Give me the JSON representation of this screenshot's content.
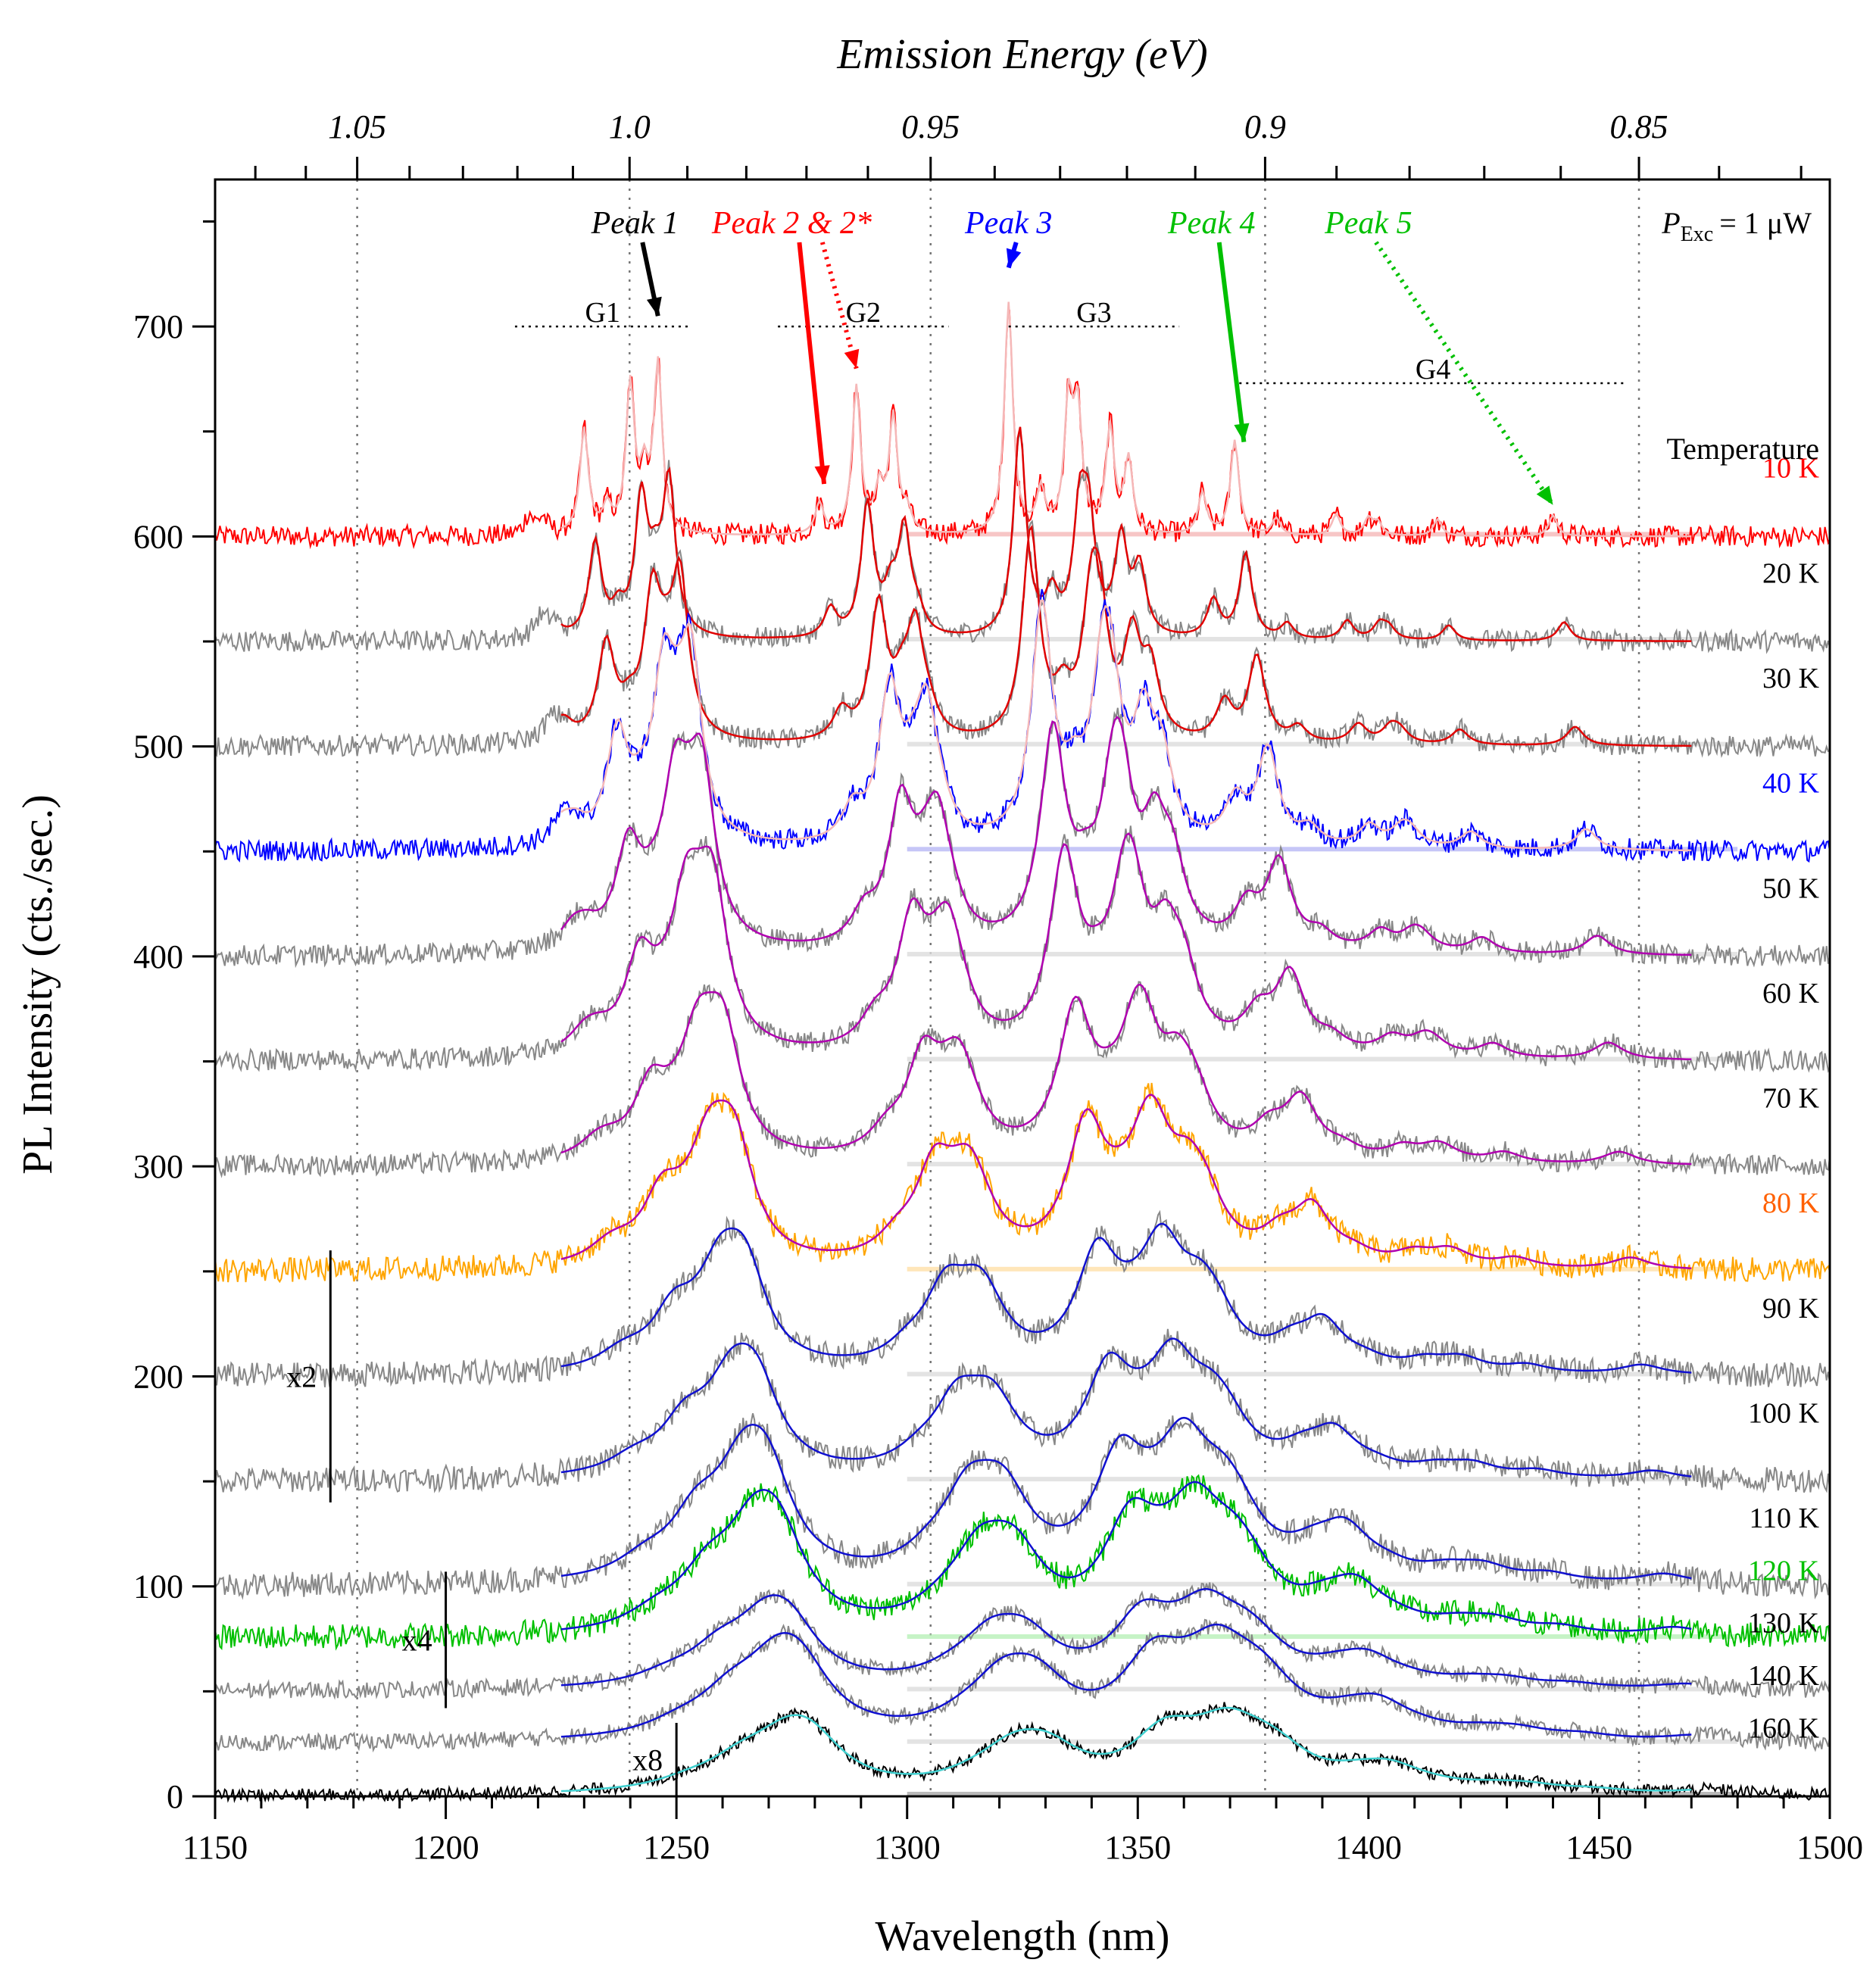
{
  "chart_data": {
    "type": "line",
    "title": "",
    "xlabel": "Wavelength (nm)",
    "ylabel": "PL Intensity (cts./sec.)",
    "x2label": "Emission Energy (eV)",
    "xlim": [
      1150,
      1500
    ],
    "ylim": [
      0,
      770
    ],
    "xticks": [
      1150,
      1200,
      1250,
      1300,
      1350,
      1400,
      1450,
      1500
    ],
    "xtick_labels": [
      "1150",
      "1200",
      "1250",
      "1300",
      "1350",
      "1400",
      "1450",
      "1500"
    ],
    "yticks": [
      0,
      100,
      200,
      300,
      400,
      500,
      600,
      700
    ],
    "ytick_labels": [
      "0",
      "100",
      "200",
      "300",
      "400",
      "500",
      "600",
      "700"
    ],
    "top_ticks": [
      {
        "energy": 1.05,
        "label": "1.05"
      },
      {
        "energy": 1.0,
        "label": "1.0"
      },
      {
        "energy": 0.95,
        "label": "0.95"
      },
      {
        "energy": 0.9,
        "label": "0.9"
      },
      {
        "energy": 0.85,
        "label": "0.85"
      }
    ],
    "grid": "vertical dotted lines at top-axis major ticks",
    "excitation_note": {
      "symbol": "P",
      "subscript": "Exc",
      "value": "= 1 μW"
    },
    "legend_title": "Temperature",
    "series": [
      {
        "name": "10 K",
        "offset": 600,
        "color": "#ff0000",
        "label_color": "#ff0000",
        "fill": "#f5b8b8",
        "fit_color": "#f5b8b8",
        "scale": 1,
        "noise": 5
      },
      {
        "name": "20 K",
        "offset": 550,
        "color": "#888888",
        "label_color": "#000000",
        "fill": "#dcdcdc",
        "fit_color": "#e00000",
        "scale": 0.9,
        "noise": 5
      },
      {
        "name": "30 K",
        "offset": 500,
        "color": "#888888",
        "label_color": "#000000",
        "fill": "#dcdcdc",
        "fit_color": "#e00000",
        "scale": 0.9,
        "noise": 5
      },
      {
        "name": "40 K",
        "offset": 450,
        "color": "#0000ff",
        "label_color": "#0000ff",
        "fill": "#b8b8f5",
        "fit_color": "#f5b8b8",
        "scale": 1.0,
        "noise": 5
      },
      {
        "name": "50 K",
        "offset": 400,
        "color": "#888888",
        "label_color": "#000000",
        "fill": "#dcdcdc",
        "fit_color": "#b000b0",
        "scale": 0.9,
        "noise": 5
      },
      {
        "name": "60 K",
        "offset": 350,
        "color": "#888888",
        "label_color": "#000000",
        "fill": "#dcdcdc",
        "fit_color": "#b000b0",
        "scale": 0.8,
        "noise": 5
      },
      {
        "name": "70 K",
        "offset": 300,
        "color": "#888888",
        "label_color": "#000000",
        "fill": "#dcdcdc",
        "fit_color": "#b000b0",
        "scale": 0.6,
        "noise": 5
      },
      {
        "name": "80 K",
        "offset": 250,
        "color": "#ffa500",
        "label_color": "#ff6000",
        "fill": "#ffe0a8",
        "fit_color": "#b000b0",
        "scale": 0.55,
        "noise": 6
      },
      {
        "name": "90 K",
        "offset": 200,
        "color": "#888888",
        "label_color": "#000000",
        "fill": "#dcdcdc",
        "fit_color": "#1010d0",
        "scale": 0.45,
        "noise": 6
      },
      {
        "name": "100 K",
        "offset": 150,
        "color": "#888888",
        "label_color": "#000000",
        "fill": "#dcdcdc",
        "fit_color": "#1010d0",
        "scale": 0.4,
        "noise": 6
      },
      {
        "name": "110 K",
        "offset": 100,
        "color": "#888888",
        "label_color": "#000000",
        "fill": "#dcdcdc",
        "fit_color": "#1010d0",
        "scale": 0.45,
        "noise": 6
      },
      {
        "name": "120 K",
        "offset": 75,
        "color": "#00c000",
        "label_color": "#00c000",
        "fill": "#b8f0b8",
        "fit_color": "#1010d0",
        "scale": 0.4,
        "noise": 6
      },
      {
        "name": "130 K",
        "offset": 50,
        "color": "#888888",
        "label_color": "#000000",
        "fill": "#dcdcdc",
        "fit_color": "#1010d0",
        "scale": 0.25,
        "noise": 4
      },
      {
        "name": "140 K",
        "offset": 25,
        "color": "#888888",
        "label_color": "#000000",
        "fill": "#dcdcdc",
        "fit_color": "#1010d0",
        "scale": 0.28,
        "noise": 4
      },
      {
        "name": "160 K",
        "offset": 0,
        "color": "#000000",
        "label_color": "#000000",
        "fill": "#a8a8a8",
        "fit_color": "#40d0d0",
        "scale": 0.2,
        "noise": 3
      }
    ],
    "peak_annotations": [
      {
        "label": "Peak 1",
        "color": "#000000",
        "arrow_to_nm": 1246,
        "arrow_to_y": 705,
        "text_nm": 1241,
        "dotted": false
      },
      {
        "label": "Peak 2 & 2*",
        "color": "#ff0000",
        "arrow_to_nm": 1282,
        "arrow_to_y": 625,
        "text_nm": 1275,
        "dotted": false
      },
      {
        "label": "",
        "color": "#ff0000",
        "arrow_to_nm": 1289,
        "arrow_to_y": 680,
        "text_nm": 1280,
        "dotted": true
      },
      {
        "label": "Peak 3",
        "color": "#0000ff",
        "arrow_to_nm": 1322,
        "arrow_to_y": 728,
        "text_nm": 1322,
        "dotted": false
      },
      {
        "label": "Peak 4",
        "color": "#00c000",
        "arrow_to_nm": 1373,
        "arrow_to_y": 645,
        "text_nm": 1366,
        "dotted": false
      },
      {
        "label": "Peak 5",
        "color": "#00c000",
        "arrow_to_nm": 1440,
        "arrow_to_y": 615,
        "text_nm": 1400,
        "dotted": true
      }
    ],
    "groups": [
      {
        "label": "G1",
        "x1": 1215,
        "x2": 1253,
        "y": 700
      },
      {
        "label": "G2",
        "x1": 1272,
        "x2": 1309,
        "y": 700
      },
      {
        "label": "G3",
        "x1": 1322,
        "x2": 1359,
        "y": 700
      },
      {
        "label": "G4",
        "x1": 1372,
        "x2": 1456,
        "y": 673
      }
    ],
    "scale_markers": [
      {
        "label": "x2",
        "x_nm": 1175,
        "y1": 140,
        "y2": 260
      },
      {
        "label": "x4",
        "x_nm": 1200,
        "y1": 42,
        "y2": 107
      },
      {
        "label": "x8",
        "x_nm": 1250,
        "y1": 0,
        "y2": 35
      }
    ]
  }
}
